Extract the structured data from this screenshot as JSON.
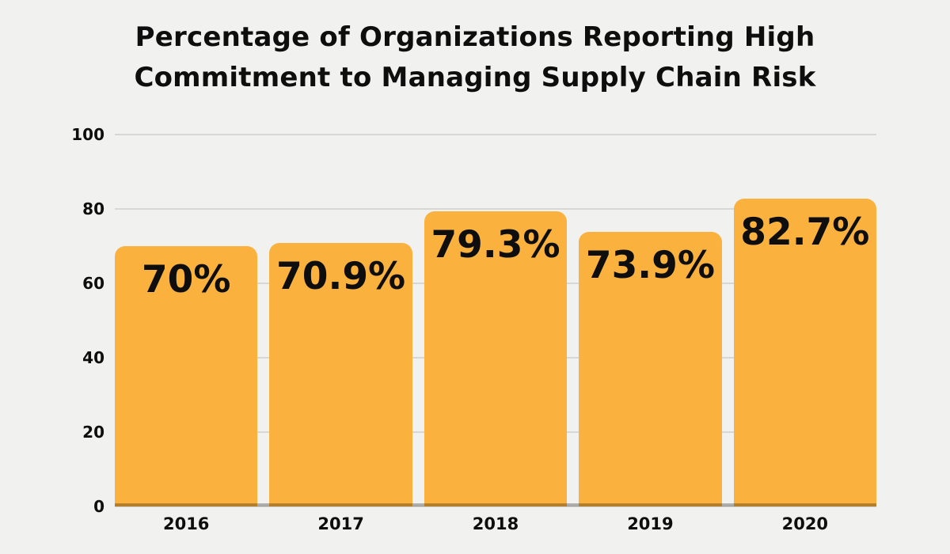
{
  "page": {
    "background_color": "#F1F1EF",
    "text_color": "#0E0E0E"
  },
  "chart_data": {
    "type": "bar",
    "title": "Percentage of Organizations Reporting High Commitment to Managing Supply Chain Risk",
    "title_lines": [
      "Percentage of Organizations Reporting High",
      "Commitment to Managing Supply Chain Risk"
    ],
    "categories": [
      "2016",
      "2017",
      "2018",
      "2019",
      "2020"
    ],
    "values": [
      70,
      70.9,
      79.3,
      73.9,
      82.7
    ],
    "value_labels": [
      "70%",
      "70.9%",
      "79.3%",
      "73.9%",
      "82.7%"
    ],
    "xlabel": "",
    "ylabel": "",
    "ylim": [
      0,
      100
    ],
    "y_ticks": [
      0,
      20,
      40,
      60,
      80,
      100
    ],
    "grid": true,
    "legend": "none",
    "bar_color": "#FAB13D",
    "grid_color": "#D7D7D5",
    "axis_line_color": "rgba(0,0,0,0.28)",
    "label_color": "#0E0E0E"
  }
}
